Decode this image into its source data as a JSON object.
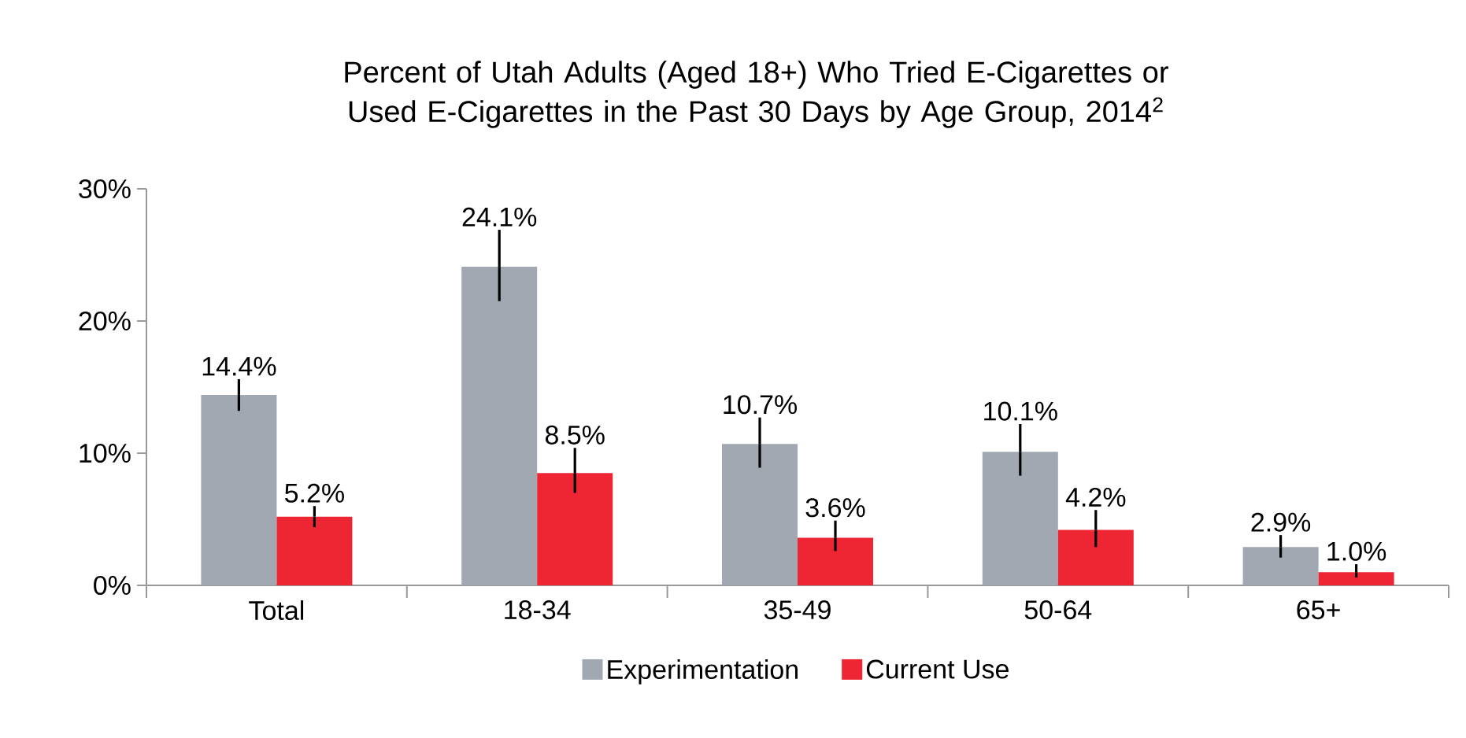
{
  "chart_data": {
    "type": "bar",
    "title": "Percent of Utah Adults (Aged 18+) Who Tried E-Cigarettes or Used E-Cigarettes in the Past 30 Days by Age Group, 2014$^{2}$",
    "categories": [
      "Total",
      "18-34",
      "35-49",
      "50-64",
      "65+"
    ],
    "series": [
      {
        "name": "Experimentation",
        "color": "#a2a8b1",
        "values": [
          14.4,
          24.1,
          10.7,
          10.1,
          2.9
        ],
        "value_labels": [
          "14.4%",
          "24.1%",
          "10.7%",
          "10.1%",
          "2.9%"
        ],
        "errors": [
          [
            13.2,
            15.6
          ],
          [
            21.5,
            26.9
          ],
          [
            8.9,
            12.7
          ],
          [
            8.3,
            12.2
          ],
          [
            2.1,
            3.8
          ]
        ]
      },
      {
        "name": "Current Use",
        "color": "#ee2532",
        "values": [
          5.2,
          8.5,
          3.6,
          4.2,
          1.0
        ],
        "value_labels": [
          "5.2%",
          "8.5%",
          "3.6%",
          "4.2%",
          "1.0%"
        ],
        "errors": [
          [
            4.4,
            6.0
          ],
          [
            7.0,
            10.4
          ],
          [
            2.6,
            4.9
          ],
          [
            2.9,
            5.7
          ],
          [
            0.6,
            1.6
          ]
        ]
      }
    ],
    "ylim": [
      0,
      30
    ],
    "yticks": [
      {
        "value": 0,
        "label": "0%"
      },
      {
        "value": 10,
        "label": "10%"
      },
      {
        "value": 20,
        "label": "20%"
      },
      {
        "value": 30,
        "label": "30%"
      }
    ],
    "grid": false,
    "legend": "bottom"
  }
}
